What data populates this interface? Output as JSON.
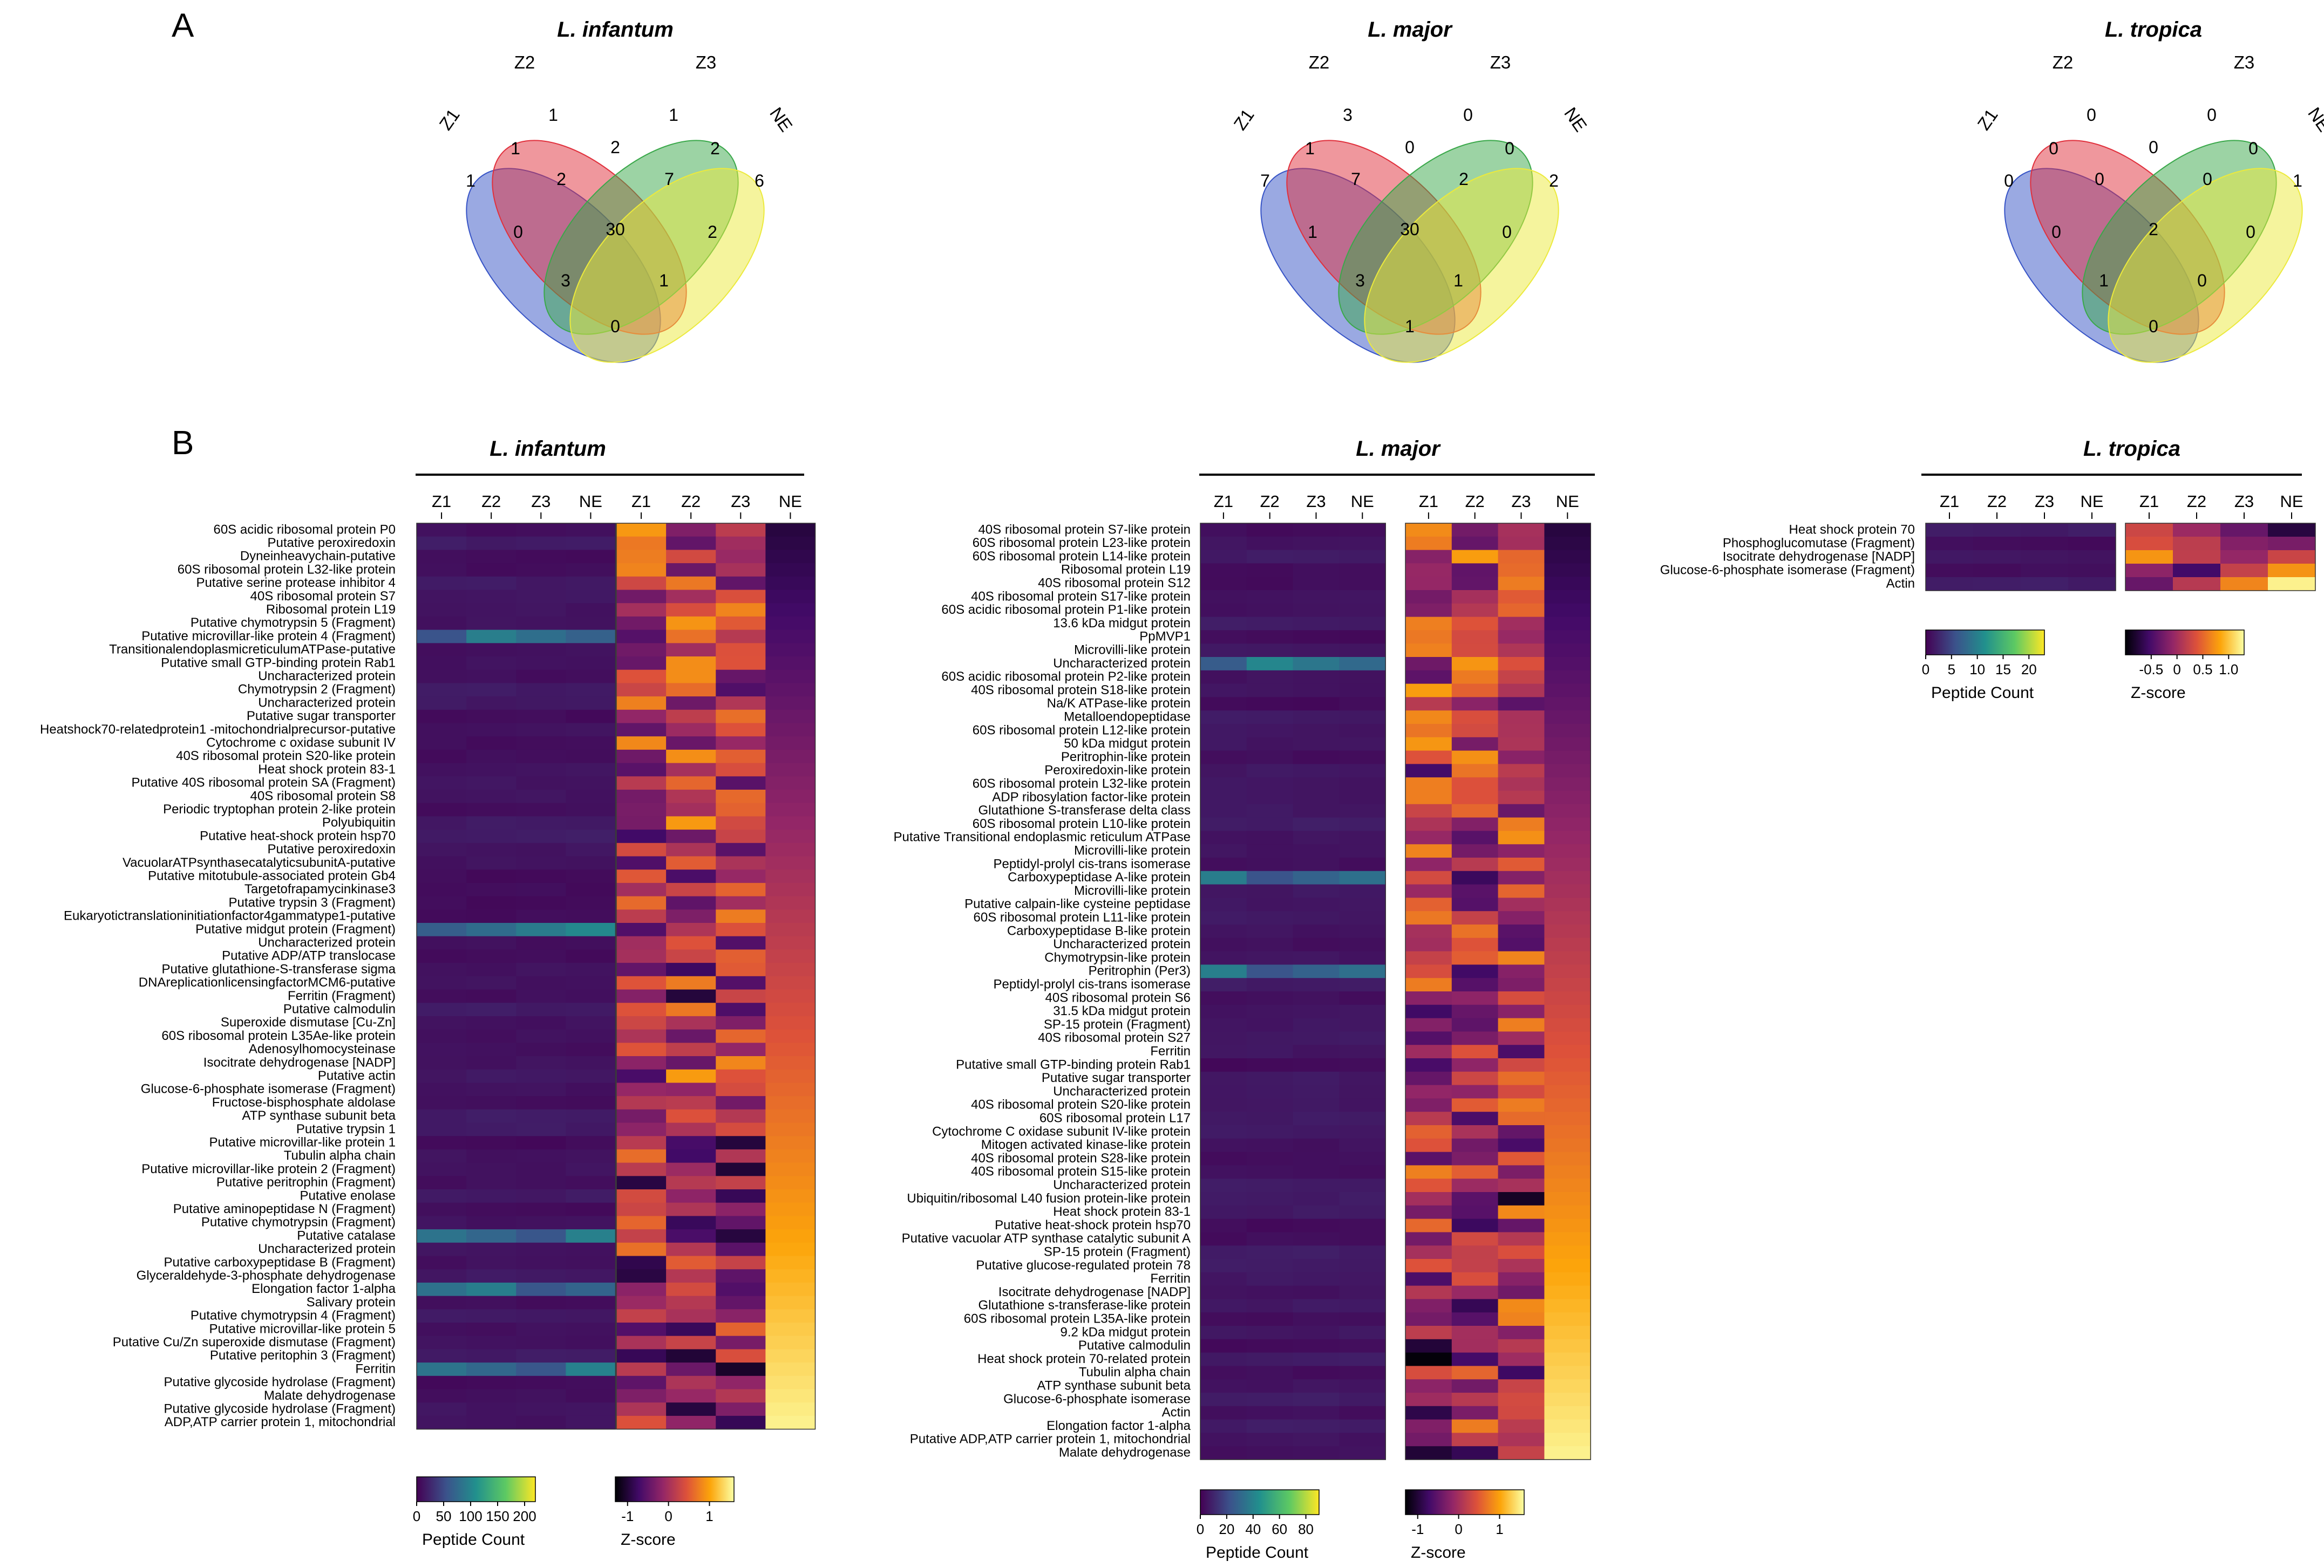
{
  "panel_labels": {
    "a": "A",
    "b": "B"
  },
  "colors": {
    "z1": "#3653c6",
    "z2": "#e0303c",
    "z3": "#3aa84a",
    "ne": "#ecea3c",
    "viridis": [
      "#440154",
      "#3b528b",
      "#21908d",
      "#5dc963",
      "#fde725"
    ],
    "inferno": [
      "#000004",
      "#420a68",
      "#932667",
      "#dd513a",
      "#fca50a",
      "#fcffa4"
    ]
  },
  "chart_data": [
    {
      "type": "venn",
      "species": "L. infantum",
      "sets": [
        "Z1",
        "Z2",
        "Z3",
        "NE"
      ],
      "regions": {
        "Z1": 1,
        "Z2": 1,
        "Z3": 1,
        "NE": 6,
        "Z1&Z2": 1,
        "Z2&Z3": 2,
        "Z3&NE": 2,
        "Z1&Z3": 0,
        "Z2&NE": 2,
        "Z1&NE": 0,
        "Z1&Z2&Z3": 2,
        "Z2&Z3&NE": 7,
        "Z1&Z3&NE": 3,
        "Z1&Z2&NE": 1,
        "Z1&Z2&Z3&NE": 30
      }
    },
    {
      "type": "venn",
      "species": "L. major",
      "sets": [
        "Z1",
        "Z2",
        "Z3",
        "NE"
      ],
      "regions": {
        "Z1": 7,
        "Z2": 3,
        "Z3": 0,
        "NE": 2,
        "Z1&Z2": 1,
        "Z2&Z3": 0,
        "Z3&NE": 0,
        "Z1&Z3": 1,
        "Z2&NE": 0,
        "Z1&NE": 1,
        "Z1&Z2&Z3": 7,
        "Z2&Z3&NE": 2,
        "Z1&Z3&NE": 3,
        "Z1&Z2&NE": 1,
        "Z1&Z2&Z3&NE": 30
      }
    },
    {
      "type": "venn",
      "species": "L. tropica",
      "sets": [
        "Z1",
        "Z2",
        "Z3",
        "NE"
      ],
      "regions": {
        "Z1": 0,
        "Z2": 0,
        "Z3": 0,
        "NE": 1,
        "Z1&Z2": 0,
        "Z2&Z3": 0,
        "Z3&NE": 0,
        "Z1&Z3": 0,
        "Z2&NE": 0,
        "Z1&NE": 0,
        "Z1&Z2&Z3": 0,
        "Z2&Z3&NE": 0,
        "Z1&Z3&NE": 1,
        "Z1&Z2&NE": 0,
        "Z1&Z2&Z3&NE": 2
      }
    },
    {
      "type": "heatmap",
      "species": "L. infantum",
      "columns": [
        "Z1",
        "Z2",
        "Z3",
        "NE"
      ],
      "count_legend": {
        "title": "Peptide Count",
        "ticks": [
          "0",
          "50",
          "100",
          "150",
          "200"
        ],
        "max": 220
      },
      "z_legend": {
        "title": "Z-score",
        "ticks": [
          "-1",
          "0",
          "1"
        ],
        "min": -1.3,
        "max": 1.6
      },
      "rows": [
        "60S acidic ribosomal protein P0",
        "Putative peroxiredoxin",
        "Dyneinheavychain-putative",
        "60S ribosomal protein L32-like protein",
        "Putative serine protease inhibitor 4",
        "40S ribosomal protein S7",
        "Ribosomal protein L19",
        "Putative chymotrypsin 5 (Fragment)",
        "Putative microvillar-like protein 4 (Fragment)",
        "TransitionalendoplasmicreticulumATPase-putative",
        "Putative small GTP-binding protein Rab1",
        "Uncharacterized protein",
        "Chymotrypsin 2 (Fragment)",
        "Uncharacterized protein",
        "Putative sugar transporter",
        "Heatshock70-relatedprotein1 -mitochondrialprecursor-putative",
        "Cytochrome c oxidase subunit IV",
        "40S ribosomal protein S20-like protein",
        "Heat shock protein 83-1",
        "Putative 40S ribosomal protein SA (Fragment)",
        "40S ribosomal protein S8",
        "Periodic tryptophan protein 2-like protein",
        "Polyubiquitin",
        "Putative heat-shock protein hsp70",
        "Putative peroxiredoxin",
        "VacuolarATPsynthasecatalyticsubunitA-putative",
        "Putative mitotubule-associated protein Gb4",
        "Targetofrapamycinkinase3",
        "Putative trypsin 3 (Fragment)",
        "Eukaryotictranslationinitiationfactor4gammatype1-putative",
        "Putative midgut protein (Fragment)",
        "Uncharacterized protein",
        "Putative ADP/ATP translocase",
        "Putative glutathione-S-transferase sigma",
        "DNAreplicationlicensingfactorMCM6-putative",
        "Ferritin (Fragment)",
        "Putative calmodulin",
        "Superoxide dismutase [Cu-Zn]",
        "60S ribosomal protein L35Ae-like protein",
        "Adenosylhomocysteinase",
        "Isocitrate dehydrogenase [NADP]",
        "Putative actin",
        "Glucose-6-phosphate isomerase (Fragment)",
        "Fructose-bisphosphate aldolase",
        "ATP synthase subunit beta",
        "Putative trypsin 1",
        "Putative microvillar-like protein 1",
        "Tubulin alpha chain",
        "Putative microvillar-like protein 2 (Fragment)",
        "Putative peritrophin (Fragment)",
        "Putative enolase",
        "Putative aminopeptidase N (Fragment)",
        "Putative chymotrypsin (Fragment)",
        "Putative catalase",
        "Uncharacterized protein",
        "Putative carboxypeptidase B (Fragment)",
        "Glyceraldehyde-3-phosphate dehydrogenase",
        "Elongation factor 1-alpha",
        "Salivary protein",
        "Putative chymotrypsin 4 (Fragment)",
        "Putative microvillar-like protein 5",
        "Putative Cu/Zn superoxide dismutase (Fragment)",
        "Putative peritophin 3 (Fragment)",
        "Ferritin",
        "Putative glycoside hydrolase (Fragment)",
        "Malate dehydrogenase",
        "Putative glycoside hydrolase (Fragment)",
        "ADP,ATP carrier protein 1, mitochondrial"
      ]
    },
    {
      "type": "heatmap",
      "species": "L. major",
      "columns": [
        "Z1",
        "Z2",
        "Z3",
        "NE"
      ],
      "count_legend": {
        "title": "Peptide Count",
        "ticks": [
          "0",
          "20",
          "40",
          "60",
          "80"
        ],
        "max": 90
      },
      "z_legend": {
        "title": "Z-score",
        "ticks": [
          "-1",
          "0",
          "1"
        ],
        "min": -1.3,
        "max": 1.6
      },
      "rows": [
        "40S ribosomal protein S7-like protein",
        "60S ribosomal protein L23-like protein",
        "60S ribosomal protein L14-like protein",
        "Ribosomal protein L19",
        "40S ribosomal protein S12",
        "40S ribosomal protein S17-like protein",
        "60S acidic ribosomal protein P1-like protein",
        "13.6 kDa midgut protein",
        "PpMVP1",
        "Microvilli-like protein",
        "Uncharacterized protein",
        "60S acidic ribosomal protein P2-like protein",
        "40S ribosomal protein S18-like protein",
        "Na/K ATPase-like protein",
        "Metalloendopeptidase",
        "60S ribosomal protein L12-like protein",
        "50 kDa midgut protein",
        "Peritrophin-like protein",
        "Peroxiredoxin-like protein",
        "60S ribosomal protein L32-like protein",
        "ADP ribosylation factor-like protein",
        "Glutathione S-transferase delta class",
        "60S ribosomal protein L10-like protein",
        "Putative Transitional endoplasmic reticulum ATPase",
        "Microvilli-like protein",
        "Peptidyl-prolyl cis-trans isomerase",
        "Carboxypeptidase A-like protein",
        "Microvilli-like protein",
        "Putative calpain-like cysteine peptidase",
        "60S ribosomal protein L11-like protein",
        "Carboxypeptidase B-like protein",
        "Uncharacterized protein",
        "Chymotrypsin-like protein",
        "Peritrophin (Per3)",
        "Peptidyl-prolyl cis-trans isomerase",
        "40S ribosomal protein S6",
        "31.5 kDa midgut protein",
        "SP-15 protein (Fragment)",
        "40S ribosomal protein S27",
        "Ferritin",
        "Putative small GTP-binding protein Rab1",
        "Putative sugar transporter",
        "Uncharacterized protein",
        "40S ribosomal protein S20-like protein",
        "60S ribosomal protein L17",
        "Cytochrome C oxidase subunit IV-like protein",
        "Mitogen activated kinase-like protein",
        "40S ribosomal protein S28-like protein",
        "40S ribosomal protein S15-like protein",
        "Uncharacterized protein",
        "Ubiquitin/ribosomal L40 fusion protein-like protein",
        "Heat shock protein 83-1",
        "Putative heat-shock protein hsp70",
        "Putative vacuolar ATP synthase catalytic subunit A",
        "SP-15 protein (Fragment)",
        "Putative glucose-regulated protein 78",
        "Ferritin",
        "Isocitrate dehydrogenase [NADP]",
        "Glutathione s-transferase-like protein",
        "60S ribosomal protein L35A-like protein",
        "9.2 kDa midgut protein",
        "Putative calmodulin",
        "Heat shock protein 70-related protein",
        "Tubulin alpha chain",
        "ATP synthase subunit beta",
        "Glucose-6-phosphate isomerase",
        "Actin",
        "Elongation factor 1-alpha",
        "Putative ADP,ATP carrier protein 1, mitochondrial",
        "Malate dehydrogenase"
      ]
    },
    {
      "type": "heatmap",
      "species": "L. tropica",
      "columns": [
        "Z1",
        "Z2",
        "Z3",
        "NE"
      ],
      "count_legend": {
        "title": "Peptide Count",
        "ticks": [
          "0",
          "5",
          "10",
          "15",
          "20"
        ],
        "max": 23
      },
      "z_legend": {
        "title": "Z-score",
        "ticks": [
          "-0.5",
          "0",
          "0.5",
          "1.0"
        ],
        "min": -1.0,
        "max": 1.3
      },
      "rows": [
        "Heat shock protein 70",
        "Phosphoglucomutase (Fragment)",
        "Isocitrate dehydrogenase [NADP]",
        "Glucose-6-phosphate isomerase (Fragment)",
        "Actin"
      ]
    }
  ]
}
